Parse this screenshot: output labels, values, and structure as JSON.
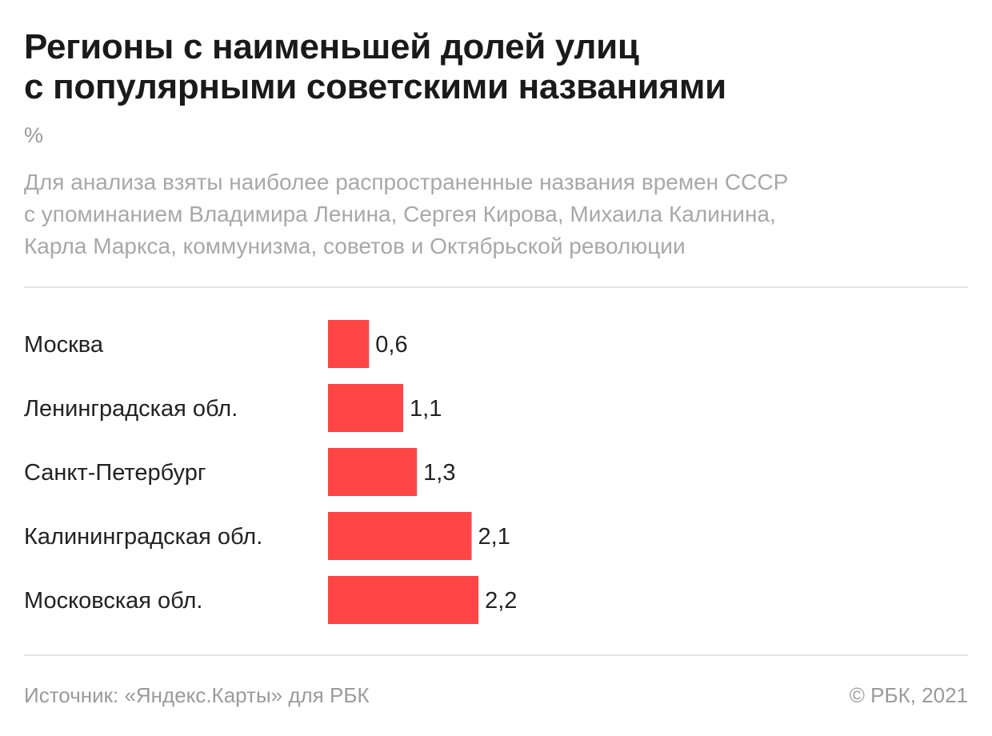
{
  "header": {
    "title_line1": "Регионы с наименьшей долей улиц",
    "title_line2": "с популярными советскими названиями",
    "unit": "%",
    "subtitle_line1": "Для анализа взяты наиболее распространенные названия времен СССР",
    "subtitle_line2": "с упоминанием Владимира Ленина, Сергея Кирова, Михаила Калинина,",
    "subtitle_line3": "Карла Маркса, коммунизма, советов и Октябрьской революции"
  },
  "chart_data": {
    "type": "bar",
    "orientation": "horizontal",
    "categories": [
      "Москва",
      "Ленинградская обл.",
      "Санкт-Петербург",
      "Калининградская обл.",
      "Московская обл."
    ],
    "values": [
      0.6,
      1.1,
      1.3,
      2.1,
      2.2
    ],
    "value_labels": [
      "0,6",
      "1,1",
      "1,3",
      "2,1",
      "2,2"
    ],
    "bar_color": "#ff4545",
    "grid": false,
    "legend": "none"
  },
  "footer": {
    "source": "Источник: «Яндекс.Карты» для РБК",
    "copyright": "© РБК, 2021"
  }
}
